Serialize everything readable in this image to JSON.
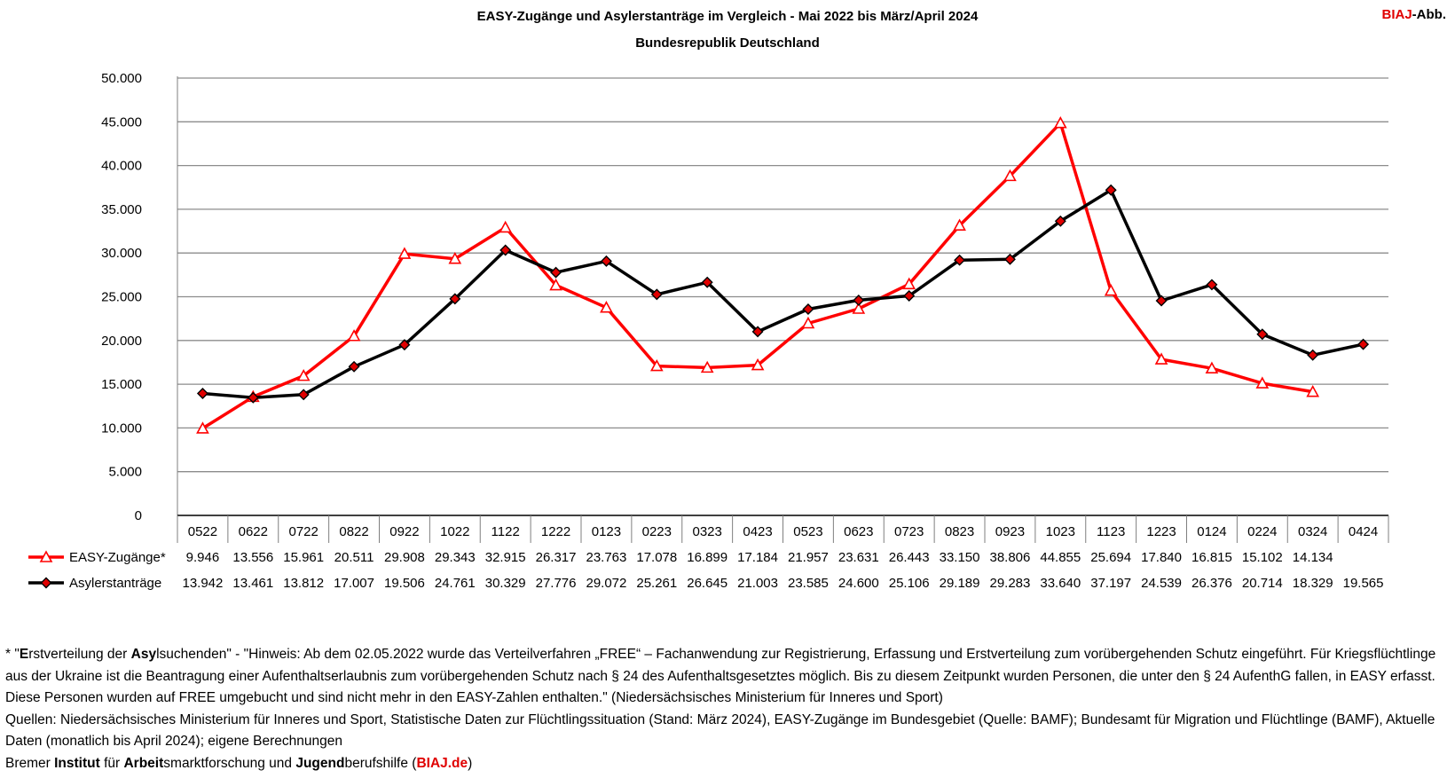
{
  "header": {
    "title": "EASY-Zugänge und Asylerstanträge im Vergleich - Mai 2022 bis März/April 2024",
    "subtitle": "Bundesrepublik Deutschland",
    "badge_brand": "BIAJ",
    "badge_suffix": "-Abb."
  },
  "chart_data": {
    "type": "line",
    "title": "EASY-Zugänge und Asylerstanträge im Vergleich - Mai 2022 bis März/April 2024",
    "subtitle": "Bundesrepublik Deutschland",
    "categories": [
      "0522",
      "0622",
      "0722",
      "0822",
      "0922",
      "1022",
      "1122",
      "1222",
      "0123",
      "0223",
      "0323",
      "0423",
      "0523",
      "0623",
      "0723",
      "0823",
      "0923",
      "1023",
      "1123",
      "1223",
      "0124",
      "0224",
      "0324",
      "0424"
    ],
    "series": [
      {
        "name": "EASY-Zugänge*",
        "color": "#ff0000",
        "marker": "triangle-open",
        "values": [
          9946,
          13556,
          15961,
          20511,
          29908,
          29343,
          32915,
          26317,
          23763,
          17078,
          16899,
          17184,
          21957,
          23631,
          26443,
          33150,
          38806,
          44855,
          25694,
          17840,
          16815,
          15102,
          14134,
          null
        ],
        "labels": [
          "9.946",
          "13.556",
          "15.961",
          "20.511",
          "29.908",
          "29.343",
          "32.915",
          "26.317",
          "23.763",
          "17.078",
          "16.899",
          "17.184",
          "21.957",
          "23.631",
          "26.443",
          "33.150",
          "38.806",
          "44.855",
          "25.694",
          "17.840",
          "16.815",
          "15.102",
          "14.134",
          ""
        ]
      },
      {
        "name": "Asylerstanträge",
        "color": "#000000",
        "marker": "diamond-red",
        "values": [
          13942,
          13461,
          13812,
          17007,
          19506,
          24761,
          30329,
          27776,
          29072,
          25261,
          26645,
          21003,
          23585,
          24600,
          25106,
          29189,
          29283,
          33640,
          37197,
          24539,
          26376,
          20714,
          18329,
          19565
        ],
        "labels": [
          "13.942",
          "13.461",
          "13.812",
          "17.007",
          "19.506",
          "24.761",
          "30.329",
          "27.776",
          "29.072",
          "25.261",
          "26.645",
          "21.003",
          "23.585",
          "24.600",
          "25.106",
          "29.189",
          "29.283",
          "33.640",
          "37.197",
          "24.539",
          "26.376",
          "20.714",
          "18.329",
          "19.565"
        ]
      }
    ],
    "ylim": [
      0,
      50000
    ],
    "yticks": [
      0,
      5000,
      10000,
      15000,
      20000,
      25000,
      30000,
      35000,
      40000,
      45000,
      50000
    ],
    "ytick_labels": [
      "0",
      "5.000",
      "10.000",
      "15.000",
      "20.000",
      "25.000",
      "30.000",
      "35.000",
      "40.000",
      "45.000",
      "50.000"
    ],
    "grid": true,
    "data_table": true
  },
  "footnote": {
    "line1_star": "* \"",
    "line1_b1": "E",
    "line1_t1": "rstverteilung der ",
    "line1_b2": "Asy",
    "line1_t2": "lsuchenden\" - \"Hinweis: Ab dem 02.05.2022 wurde das Verteilverfahren „FREE“ – Fachanwendung zur Registrierung, Erfassung und Erstverteilung zum vorübergehenden Schutz eingeführt. Für Kriegsflüchtlinge aus der Ukraine ist die Beantragung einer Aufenthaltserlaubnis zum vorübergehenden Schutz nach § 24 des Aufenthaltsgesetztes möglich. Bis zu diesem Zeitpunkt wurden Personen, die unter den § 24 AufenthG fallen, in EASY erfasst. Diese Personen wurden auf FREE umgebucht und sind nicht mehr in den EASY-Zahlen enthalten.\" (Niedersächsisches Ministerium für Inneres und Sport)",
    "sources": "Quellen: Niedersächsisches Ministerium für Inneres und Sport, Statistische Daten zur Flüchtlingssituation (Stand: März 2024), EASY-Zugänge im Bundesgebiet (Quelle: BAMF); Bundesamt für Migration und Flüchtlinge (BAMF), Aktuelle Daten (monatlich bis April 2024); eigene Berechnungen",
    "inst_t1": "Bremer ",
    "inst_b1": "Institut",
    "inst_t2": " für ",
    "inst_b2": "Arbeit",
    "inst_t3": "smarktforschung und ",
    "inst_b3": "Jugend",
    "inst_t4": "berufshilfe (",
    "inst_link": "BIAJ.de",
    "inst_t5": ")"
  }
}
